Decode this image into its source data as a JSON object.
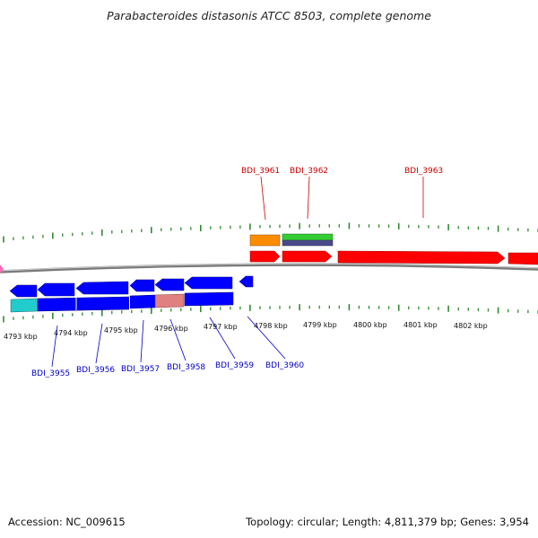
{
  "title": "Parabacteroides distasonis ATCC 8503, complete genome",
  "footer": {
    "accession": "Accession: NC_009615",
    "summary": "Topology: circular; Length: 4,811,379 bp; Genes: 3,954"
  },
  "colors": {
    "forward_cds": "#ff0000",
    "reverse_cds": "#0000ff",
    "tick": "#2f8a2f",
    "backbone": "#808080",
    "label_forward": "#cc0000",
    "label_reverse": "#0000cc",
    "orange_feature": "#ff8c00",
    "green_feature": "#33cc33",
    "slate_feature": "#4a4a8a",
    "cyan_feature": "#22cccc",
    "pink_feature": "#e08080"
  },
  "scale_labels": [
    "4793 kbp",
    "4794 kbp",
    "4795 kbp",
    "4796 kbp",
    "4797 kbp",
    "4798 kbp",
    "4799 kbp",
    "4800 kbp",
    "4801 kbp",
    "4802 kbp"
  ],
  "forward_labels": [
    "BDI_3961",
    "BDI_3962",
    "BDI_3963"
  ],
  "reverse_labels": [
    "BDI_3955",
    "BDI_3956",
    "BDI_3957",
    "BDI_3958",
    "BDI_3959",
    "BDI_3960"
  ]
}
